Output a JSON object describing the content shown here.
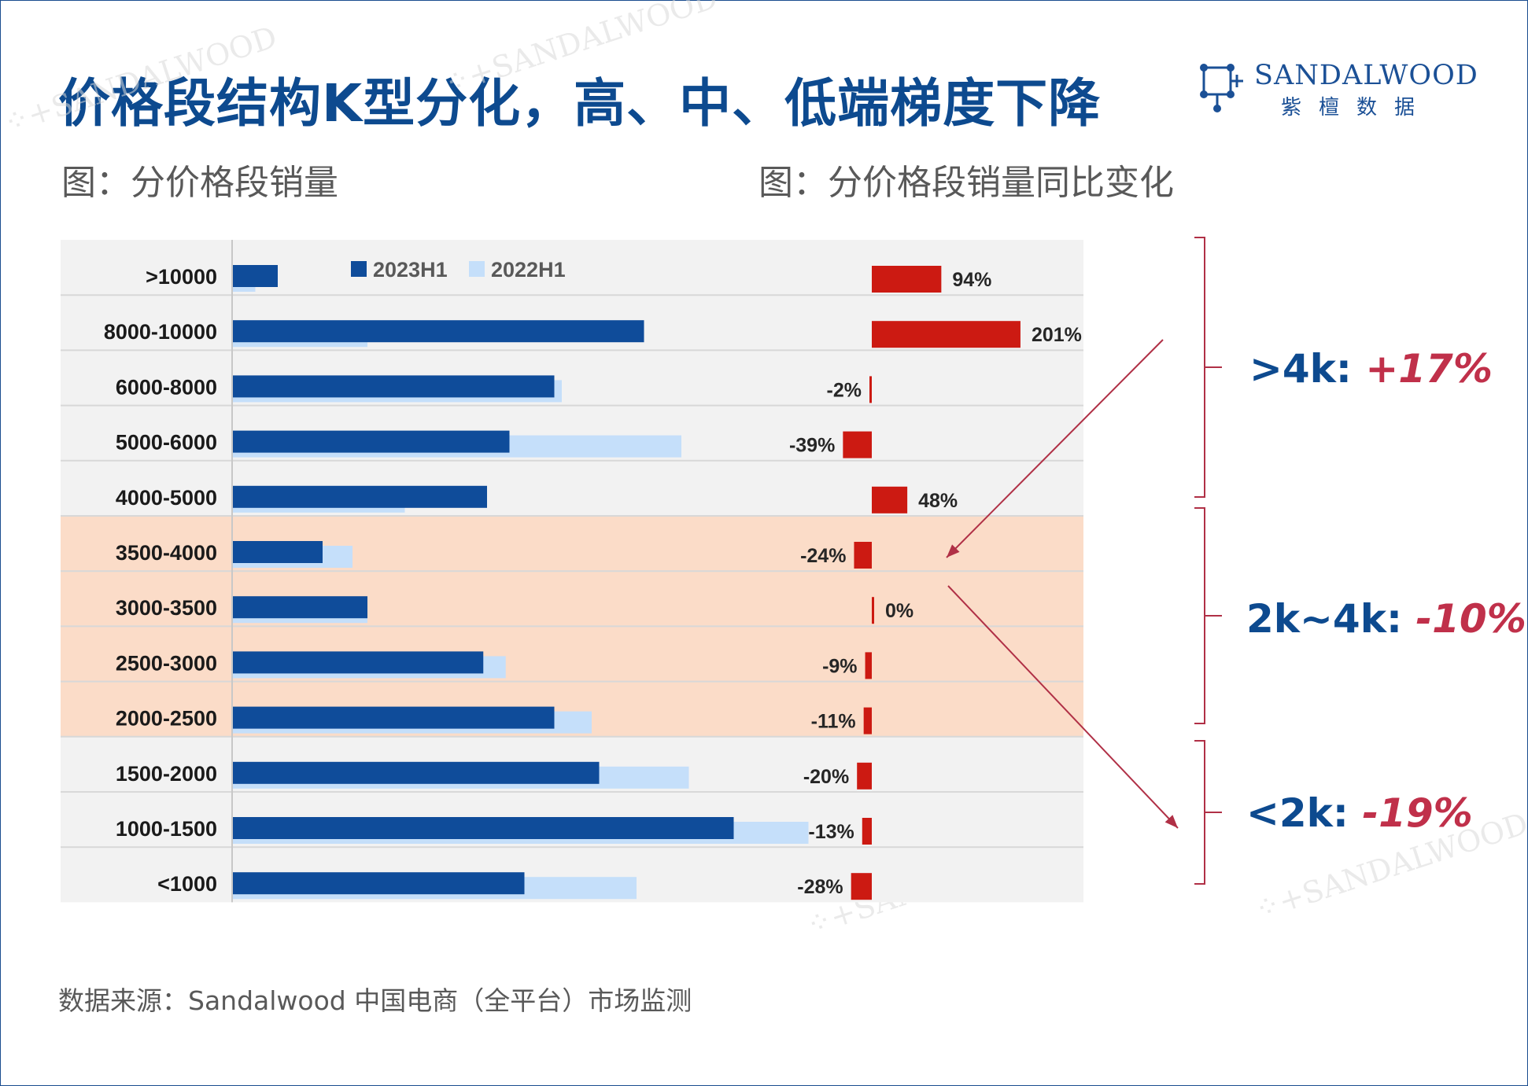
{
  "title": "价格段结构K型分化，高、中、低端梯度下降",
  "logo": {
    "en": "SANDALWOOD",
    "cn": "紫檀数据"
  },
  "subtitle_left": "图：分价格段销量",
  "subtitle_right": "图：分价格段销量同比变化",
  "source": "数据来源：Sandalwood 中国电商（全平台）市场监测",
  "watermark": "SANDALWOOD",
  "colors": {
    "series_2023": "#0f4c9a",
    "series_2022": "#c5dffa",
    "change_bar": "#cc1a12",
    "row_bg": "#f2f2f2",
    "highlight_bg": "#fbdcc8",
    "bracket": "#b03046",
    "brand_blue": "#0d4a8f",
    "accent_red": "#c0304a"
  },
  "chart_data": [
    {
      "type": "bar",
      "orientation": "horizontal",
      "categories": [
        ">10000",
        "8000-10000",
        "6000-8000",
        "5000-6000",
        "4000-5000",
        "3500-4000",
        "3000-3500",
        "2500-3000",
        "2000-2500",
        "1500-2000",
        "1000-1500",
        "<1000"
      ],
      "series": [
        {
          "name": "2023H1",
          "values": [
            6,
            55,
            43,
            37,
            34,
            12,
            18,
            33.5,
            43,
            49,
            67,
            39
          ]
        },
        {
          "name": "2022H1",
          "values": [
            3,
            18,
            44,
            60,
            23,
            16,
            18,
            36.5,
            48,
            61,
            77,
            54
          ]
        }
      ],
      "highlight_categories": [
        "3500-4000",
        "3000-3500",
        "2500-3000",
        "2000-2500"
      ],
      "legend": "top",
      "value_labels": false
    },
    {
      "type": "bar",
      "orientation": "horizontal",
      "categories": [
        ">10000",
        "8000-10000",
        "6000-8000",
        "5000-6000",
        "4000-5000",
        "3500-4000",
        "3000-3500",
        "2500-3000",
        "2000-2500",
        "1500-2000",
        "1000-1500",
        "<1000"
      ],
      "values": [
        94,
        201,
        -2,
        -39,
        48,
        -24,
        0,
        -9,
        -11,
        -20,
        -13,
        -28
      ],
      "labels": [
        "94%",
        "201%",
        "-2%",
        "-39%",
        "48%",
        "-24%",
        "0%",
        "-9%",
        "-11%",
        "-20%",
        "-13%",
        "-28%"
      ],
      "unit": "%"
    }
  ],
  "segments": [
    {
      "key": ">4k: ",
      "value": "+17%"
    },
    {
      "key": "2k~4k: ",
      "value": "-10%"
    },
    {
      "key": "<2k: ",
      "value": "-19%"
    }
  ]
}
